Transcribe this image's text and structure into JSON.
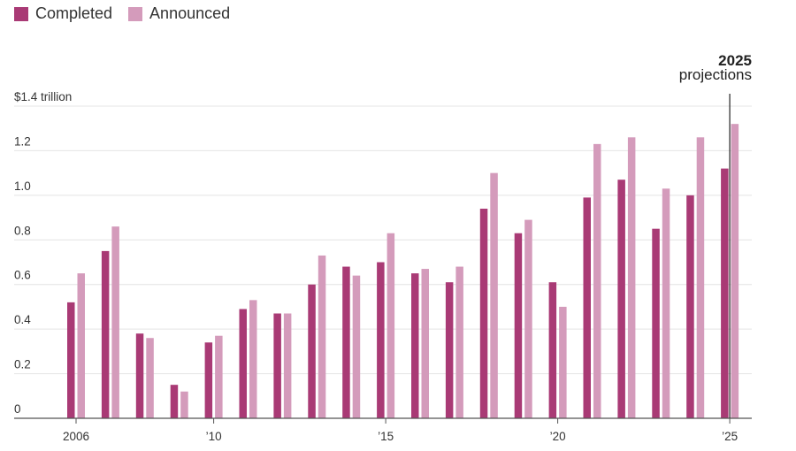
{
  "chart_data": {
    "type": "bar",
    "categories": [
      "2006",
      "2007",
      "2008",
      "2009",
      "2010",
      "2011",
      "2012",
      "2013",
      "2014",
      "2015",
      "2016",
      "2017",
      "2018",
      "2019",
      "2020",
      "2021",
      "2022",
      "2023",
      "2024",
      "2025"
    ],
    "x_tick_labels": [
      {
        "category": "2006",
        "label": "2006"
      },
      {
        "category": "2010",
        "label": "’10"
      },
      {
        "category": "2015",
        "label": "’15"
      },
      {
        "category": "2020",
        "label": "’20"
      },
      {
        "category": "2025",
        "label": "’25"
      }
    ],
    "series": [
      {
        "name": "Completed",
        "color": "#a93a75",
        "values": [
          0.52,
          0.75,
          0.38,
          0.15,
          0.34,
          0.49,
          0.47,
          0.6,
          0.68,
          0.7,
          0.65,
          0.61,
          0.94,
          0.83,
          0.61,
          0.99,
          1.07,
          0.85,
          1.0,
          1.12
        ]
      },
      {
        "name": "Announced",
        "color": "#d49bbb",
        "values": [
          0.65,
          0.86,
          0.36,
          0.12,
          0.37,
          0.53,
          0.47,
          0.73,
          0.64,
          0.83,
          0.67,
          0.68,
          1.1,
          0.89,
          0.5,
          1.23,
          1.26,
          1.03,
          1.26,
          1.32
        ]
      }
    ],
    "y_ticks": [
      {
        "value": 0,
        "label": "0"
      },
      {
        "value": 0.2,
        "label": "0.2"
      },
      {
        "value": 0.4,
        "label": "0.4"
      },
      {
        "value": 0.6,
        "label": "0.6"
      },
      {
        "value": 0.8,
        "label": "0.8"
      },
      {
        "value": 1.0,
        "label": "1.0"
      },
      {
        "value": 1.2,
        "label": "1.2"
      },
      {
        "value": 1.4,
        "label": "$1.4 trillion"
      }
    ],
    "ylim": [
      0,
      1.4
    ],
    "grid": true,
    "legend_position": "top-left",
    "annotation": {
      "category": "2025",
      "year": "2025",
      "text": "projections"
    }
  }
}
